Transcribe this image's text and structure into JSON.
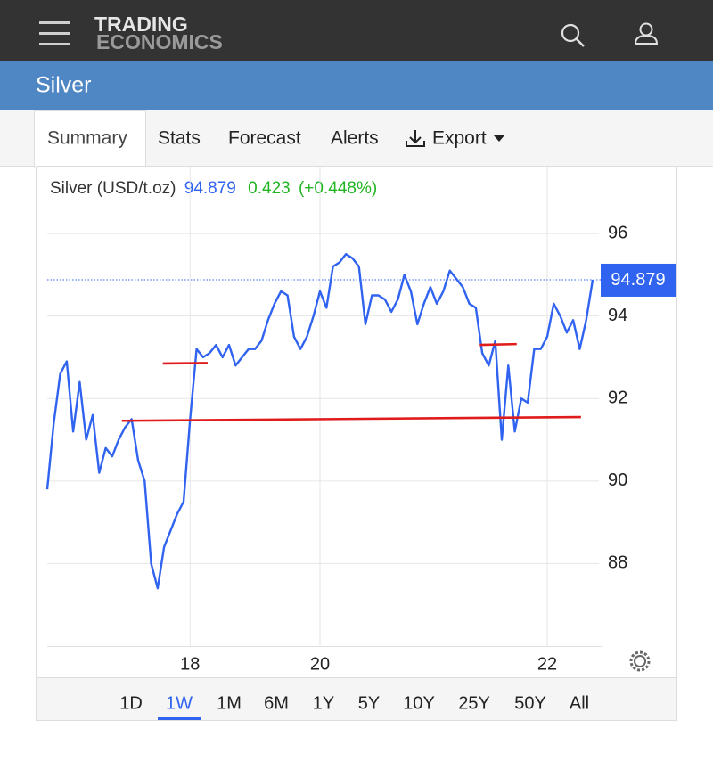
{
  "header": {
    "logo_top": "TRADING",
    "logo_bottom": "ECONOMICS"
  },
  "banner": {
    "title": "Silver"
  },
  "tabs": [
    "Summary",
    "Stats",
    "Forecast",
    "Alerts",
    "Export"
  ],
  "chart_data": {
    "type": "line",
    "title": "Silver (USD/t.oz)",
    "price": 94.879,
    "change": 0.423,
    "change_pct_label": "(+0.448%)",
    "categories": [
      null,
      null,
      null,
      null,
      null,
      null,
      null,
      null,
      null,
      null,
      null,
      null,
      null,
      null,
      null,
      null,
      null,
      null,
      null,
      null,
      null,
      null,
      "18",
      null,
      null,
      null,
      null,
      null,
      null,
      null,
      null,
      null,
      null,
      null,
      null,
      null,
      null,
      null,
      null,
      null,
      null,
      null,
      "20",
      null,
      null,
      null,
      null,
      null,
      null,
      null,
      null,
      null,
      null,
      null,
      null,
      null,
      null,
      null,
      null,
      null,
      null,
      null,
      null,
      null,
      null,
      null,
      null,
      null,
      null,
      null,
      null,
      null,
      null,
      null,
      null,
      null,
      null,
      "22",
      null,
      null,
      null,
      null,
      null,
      null,
      null
    ],
    "series": [
      {
        "name": "Silver",
        "color": "#2f63f0",
        "values": [
          89.8,
          91.4,
          92.6,
          92.9,
          91.2,
          92.4,
          91.0,
          91.6,
          90.2,
          90.8,
          90.6,
          91.0,
          91.3,
          91.5,
          90.5,
          90.0,
          88.0,
          87.4,
          88.4,
          88.8,
          89.2,
          89.5,
          91.5,
          93.2,
          93.0,
          93.1,
          93.3,
          93.0,
          93.3,
          92.8,
          93.0,
          93.2,
          93.2,
          93.4,
          93.9,
          94.3,
          94.6,
          94.5,
          93.5,
          93.2,
          93.5,
          94.0,
          94.6,
          94.2,
          95.2,
          95.3,
          95.5,
          95.4,
          95.2,
          93.8,
          94.5,
          94.5,
          94.4,
          94.1,
          94.4,
          95.0,
          94.6,
          93.8,
          94.3,
          94.7,
          94.3,
          94.6,
          95.1,
          94.9,
          94.7,
          94.3,
          94.2,
          93.1,
          92.8,
          93.4,
          91.0,
          92.8,
          91.2,
          92.0,
          91.9,
          93.2,
          93.2,
          93.5,
          94.3,
          94.0,
          93.6,
          93.9,
          93.2,
          93.9,
          94.879
        ]
      }
    ],
    "trend_lines": {
      "color": "#e01b1b",
      "lines": [
        {
          "x": [
            17.8,
            24.7
          ],
          "values": [
            92.85,
            92.86
          ]
        },
        {
          "x": [
            11.5,
            82.2
          ],
          "values": [
            91.46,
            91.55
          ]
        },
        {
          "x": [
            66.6,
            72.3
          ],
          "values": [
            93.3,
            93.32
          ]
        }
      ]
    },
    "ylim": [
      86,
      97.5
    ],
    "yticks": [
      88,
      90,
      92,
      94,
      96
    ],
    "grid": true
  },
  "ranges": [
    "1D",
    "1W",
    "1M",
    "6M",
    "1Y",
    "5Y",
    "10Y",
    "25Y",
    "50Y",
    "All"
  ],
  "active_range": 1
}
